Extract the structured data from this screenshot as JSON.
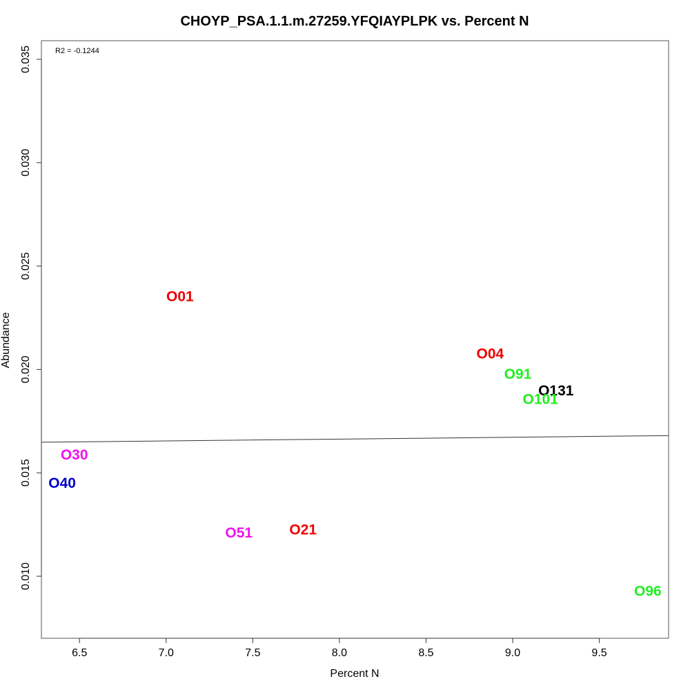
{
  "chart_data": {
    "type": "scatter",
    "title": "CHOYP_PSA.1.1.m.27259.YFQIAYPLPK vs. Percent N",
    "xlabel": "Percent N",
    "ylabel": "Abundance",
    "xlim": [
      6.28,
      9.9
    ],
    "ylim": [
      0.007,
      0.0359
    ],
    "xticks": [
      6.5,
      7.0,
      7.5,
      8.0,
      8.5,
      9.0,
      9.5
    ],
    "xtick_labels": [
      "6.5",
      "7.0",
      "7.5",
      "8.0",
      "8.5",
      "9.0",
      "9.5"
    ],
    "yticks": [
      0.01,
      0.015,
      0.02,
      0.025,
      0.03,
      0.035
    ],
    "ytick_labels": [
      "0.010",
      "0.015",
      "0.020",
      "0.025",
      "0.030",
      "0.035"
    ],
    "annotation": "R2 = -0.1244",
    "fit_line": {
      "y_at_xmin": 0.01648,
      "y_at_xmax": 0.0168
    },
    "grid": false,
    "points": [
      {
        "label": "O01",
        "x": 7.08,
        "y": 0.02354,
        "color": "#ee0000"
      },
      {
        "label": "O04",
        "x": 8.87,
        "y": 0.02076,
        "color": "#ee0000"
      },
      {
        "label": "O91",
        "x": 9.03,
        "y": 0.01978,
        "color": "#22ee22"
      },
      {
        "label": "O131",
        "x": 9.25,
        "y": 0.01898,
        "color": "#000000"
      },
      {
        "label": "O101",
        "x": 9.16,
        "y": 0.01857,
        "color": "#22ee22"
      },
      {
        "label": "O30",
        "x": 6.47,
        "y": 0.01588,
        "color": "#ee11ee"
      },
      {
        "label": "O40",
        "x": 6.4,
        "y": 0.01451,
        "color": "#0000cc"
      },
      {
        "label": "O51",
        "x": 7.42,
        "y": 0.01211,
        "color": "#ee11ee"
      },
      {
        "label": "O21",
        "x": 7.79,
        "y": 0.01225,
        "color": "#ee0000"
      },
      {
        "label": "O96",
        "x": 9.78,
        "y": 0.00928,
        "color": "#22ee22"
      }
    ]
  }
}
